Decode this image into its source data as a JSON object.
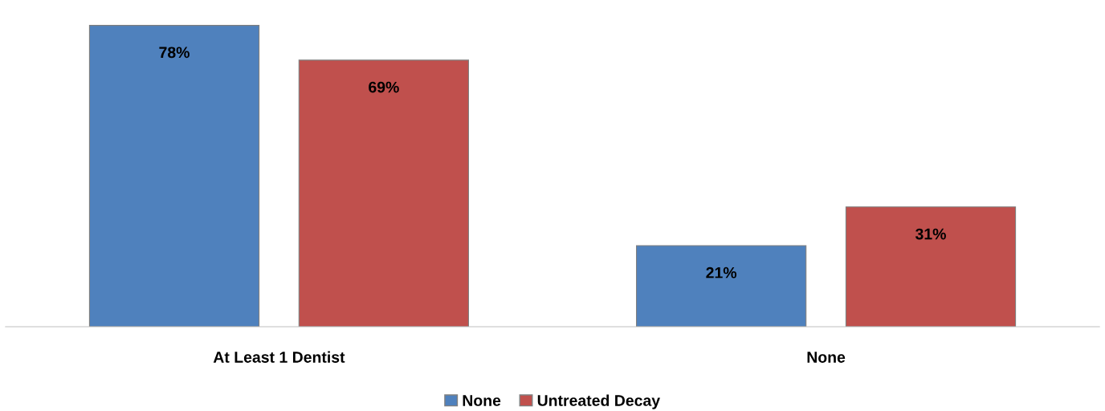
{
  "chart_data": {
    "type": "bar",
    "categories": [
      "At Least 1 Dentist",
      "None"
    ],
    "series": [
      {
        "name": "None",
        "color": "#4f81bd",
        "values": [
          78,
          21
        ],
        "value_labels": [
          "78%",
          "21%"
        ]
      },
      {
        "name": "Untreated Decay",
        "color": "#c0504d",
        "values": [
          69,
          31
        ],
        "value_labels": [
          "69%",
          "31%"
        ]
      }
    ],
    "legend": "bottom",
    "grid": false,
    "tick_labels": "x"
  }
}
